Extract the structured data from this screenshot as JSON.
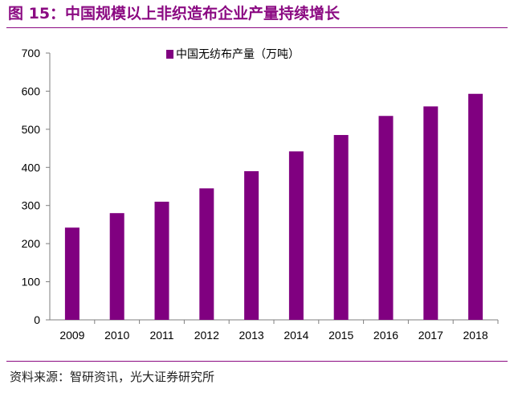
{
  "title": "图 15：中国规模以上非织造布企业产量持续增长",
  "source": "资料来源：智研资讯，光大证券研究所",
  "colors": {
    "bar": "#800080",
    "title": "#8b0a82"
  },
  "chart_data": {
    "type": "bar",
    "categories": [
      "2009",
      "2010",
      "2011",
      "2012",
      "2013",
      "2014",
      "2015",
      "2016",
      "2017",
      "2018"
    ],
    "series": [
      {
        "name": "中国无纺布产量（万吨）",
        "values": [
          242,
          280,
          310,
          345,
          390,
          442,
          485,
          535,
          560,
          593
        ]
      }
    ],
    "ylim": [
      0,
      700
    ],
    "yticks": [
      0,
      100,
      200,
      300,
      400,
      500,
      600,
      700
    ],
    "grid": false,
    "legend": "top-center"
  }
}
